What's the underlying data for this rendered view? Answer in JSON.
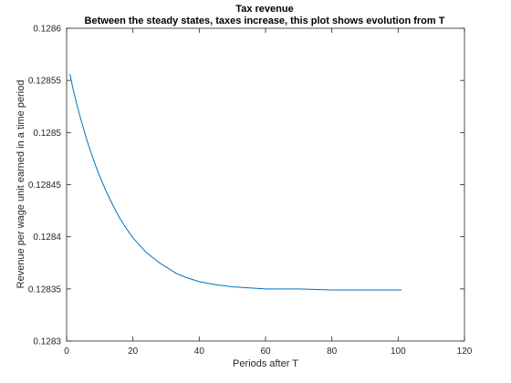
{
  "chart_data": {
    "type": "line",
    "title": "Tax revenue",
    "subtitle": "Between the steady states, taxes increase, this plot shows evolution from T",
    "xlabel": "Periods after T",
    "ylabel": "Revenue per wage unit earned in a time period",
    "xlim": [
      0,
      120
    ],
    "ylim": [
      0.1283,
      0.1286
    ],
    "xticks": [
      0,
      20,
      40,
      60,
      80,
      100,
      120
    ],
    "yticks": [
      0.1283,
      0.12835,
      0.1284,
      0.12845,
      0.1285,
      0.12855,
      0.1286
    ],
    "xtick_labels": [
      "0",
      "20",
      "40",
      "60",
      "80",
      "100",
      "120"
    ],
    "ytick_labels": [
      "0.1283",
      "0.12835",
      "0.1284",
      "0.12845",
      "0.1285",
      "0.12855",
      "0.1286"
    ],
    "grid": false,
    "series_color": "#0072BD",
    "series": [
      {
        "x": [
          1,
          2,
          3,
          4,
          5,
          6,
          7,
          8,
          9,
          10,
          12,
          14,
          16,
          18,
          20,
          22,
          24,
          26,
          28,
          30,
          33,
          36,
          40,
          45,
          50,
          60,
          70,
          80,
          90,
          101
        ],
        "values": [
          0.128556,
          0.128541,
          0.128528,
          0.128516,
          0.128505,
          0.128494,
          0.128484,
          0.128475,
          0.128466,
          0.128458,
          0.128443,
          0.12843,
          0.128418,
          0.128408,
          0.128399,
          0.128392,
          0.128385,
          0.12838,
          0.128375,
          0.128371,
          0.128365,
          0.128361,
          0.128357,
          0.128354,
          0.128352,
          0.12835,
          0.12835,
          0.128349,
          0.128349,
          0.128349
        ]
      }
    ]
  }
}
